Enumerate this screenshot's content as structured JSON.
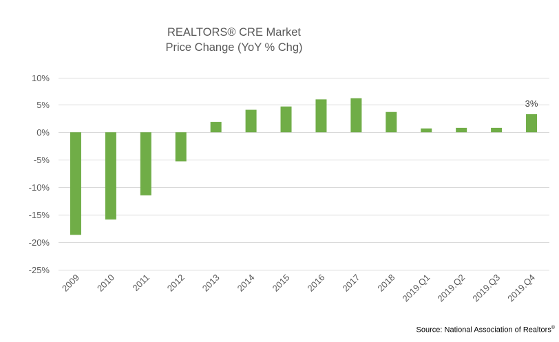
{
  "chart_data": {
    "type": "bar",
    "title": "REALTORS® CRE Market Price Change (YoY % Chg)",
    "title_lines": [
      "REALTORS® CRE Market",
      "Price Change (YoY % Chg)"
    ],
    "xlabel": "",
    "ylabel": "",
    "categories": [
      "2009",
      "2010",
      "2011",
      "2012",
      "2013",
      "2014",
      "2015",
      "2016",
      "2017",
      "2018",
      "2019.Q1",
      "2019.Q2",
      "2019.Q3",
      "2019.Q4"
    ],
    "values": [
      -18.7,
      -15.9,
      -11.5,
      -5.3,
      1.9,
      4.1,
      4.7,
      6.0,
      6.2,
      3.7,
      0.7,
      0.8,
      0.8,
      3.3
    ],
    "unit": "%",
    "ylim": [
      -25,
      10
    ],
    "yticks": [
      10,
      5,
      0,
      -5,
      -10,
      -15,
      -20,
      -25
    ],
    "ytick_labels": [
      "10%",
      "5%",
      "0%",
      "-5%",
      "-10%",
      "-15%",
      "-20%",
      "-25%"
    ],
    "grid": true,
    "legend": "none",
    "bar_color": "#70AD47",
    "annotations": [
      {
        "category": "2019.Q4",
        "text": "3%"
      }
    ],
    "source": "Source: National Association of Realtors",
    "source_mark": "®"
  }
}
